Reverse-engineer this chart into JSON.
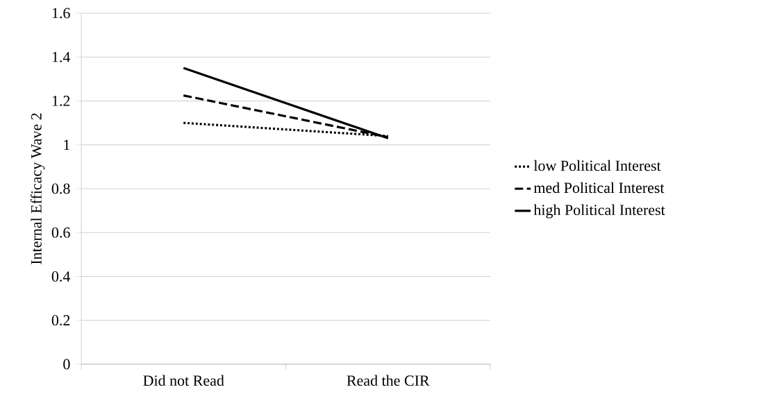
{
  "chart_data": {
    "type": "line",
    "ylabel": "Internal Efficacy Wave 2",
    "categories": [
      "Did not Read",
      "Read the CIR"
    ],
    "series": [
      {
        "name": "low Political Interest",
        "color": "#000000",
        "line_style": "dotted",
        "values": [
          1.1,
          1.04
        ]
      },
      {
        "name": "med Political Interest",
        "color": "#000000",
        "line_style": "dashed",
        "values": [
          1.225,
          1.035
        ]
      },
      {
        "name": "high Political Interest",
        "color": "#000000",
        "line_style": "solid",
        "values": [
          1.35,
          1.03
        ]
      }
    ],
    "ylim": [
      0,
      1.6
    ],
    "yticks": [
      0,
      0.2,
      0.4,
      0.6,
      0.8,
      1,
      1.2,
      1.4,
      1.6
    ],
    "grid": "y",
    "legend": "right"
  }
}
